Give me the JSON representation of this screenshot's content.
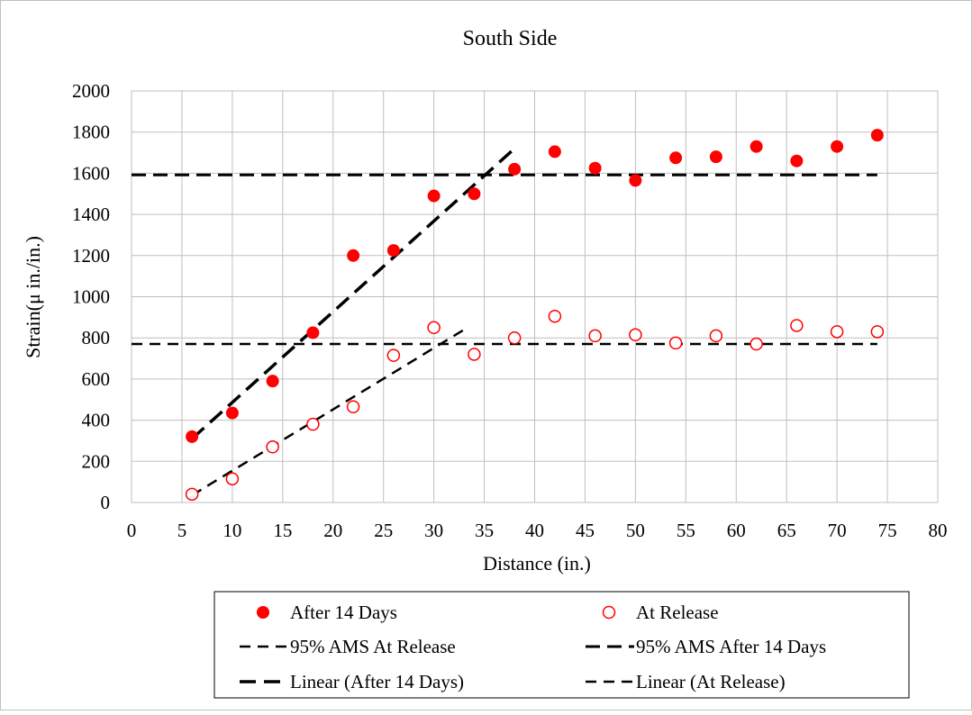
{
  "chart_data": {
    "type": "scatter",
    "title": "South Side",
    "xlabel": "Distance (in.)",
    "ylabel": "Strain(μ in./in.)",
    "xlim": [
      0,
      80
    ],
    "ylim": [
      0,
      2000
    ],
    "x_ticks": [
      0,
      5,
      10,
      15,
      20,
      25,
      30,
      35,
      40,
      45,
      50,
      55,
      60,
      65,
      70,
      75,
      80
    ],
    "y_ticks": [
      0,
      200,
      400,
      600,
      800,
      1000,
      1200,
      1400,
      1600,
      1800,
      2000
    ],
    "grid": true,
    "legend_position": "bottom",
    "colors": {
      "marker": "#ff0000",
      "line": "#000000"
    },
    "series": [
      {
        "name": "After 14 Days",
        "kind": "markers-filled",
        "x": [
          6,
          10,
          14,
          18,
          22,
          26,
          30,
          34,
          38,
          42,
          46,
          50,
          54,
          58,
          62,
          66,
          70,
          74
        ],
        "y": [
          320,
          435,
          590,
          825,
          1200,
          1225,
          1490,
          1500,
          1620,
          1705,
          1625,
          1565,
          1675,
          1680,
          1730,
          1660,
          1730,
          1785
        ]
      },
      {
        "name": "At Release",
        "kind": "markers-open",
        "x": [
          6,
          10,
          14,
          18,
          22,
          26,
          30,
          34,
          38,
          42,
          46,
          50,
          54,
          58,
          62,
          66,
          70,
          74
        ],
        "y": [
          40,
          115,
          270,
          380,
          465,
          715,
          850,
          720,
          800,
          905,
          810,
          815,
          775,
          810,
          770,
          860,
          830,
          830
        ]
      },
      {
        "name": "95% AMS At Release",
        "kind": "dashed-line",
        "x": [
          0,
          74
        ],
        "y": [
          770,
          770
        ]
      },
      {
        "name": "95% AMS After 14 Days",
        "kind": "dashed-line",
        "x": [
          0,
          74
        ],
        "y": [
          1592,
          1592
        ]
      },
      {
        "name": "Linear (After 14 Days)",
        "kind": "dashed-line",
        "x": [
          6,
          38
        ],
        "y": [
          310,
          1720
        ]
      },
      {
        "name": "Linear (At Release)",
        "kind": "dashed-line",
        "x": [
          6,
          33
        ],
        "y": [
          35,
          840
        ]
      }
    ]
  }
}
